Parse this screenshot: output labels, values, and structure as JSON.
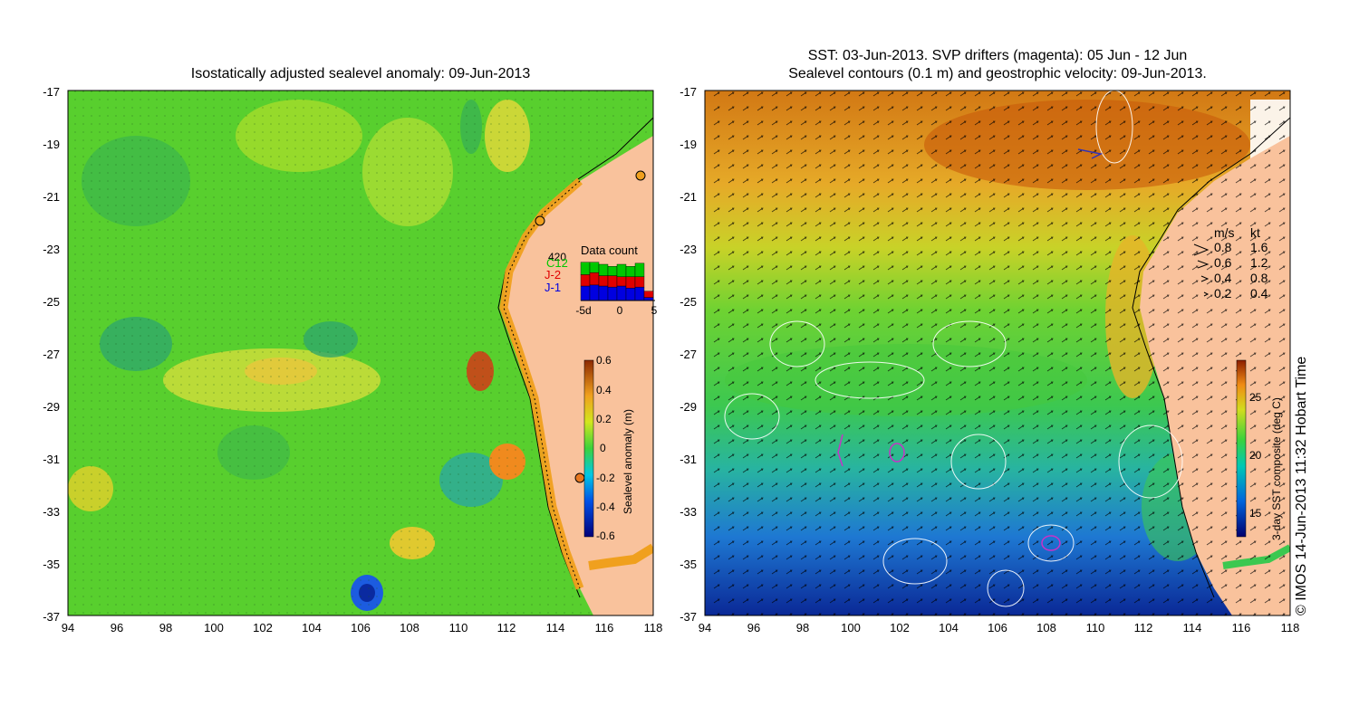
{
  "left_panel": {
    "title": "Isostatically adjusted sealevel anomaly: 09-Jun-2013",
    "x_ticks": [
      "94",
      "96",
      "98",
      "100",
      "102",
      "104",
      "106",
      "108",
      "110",
      "112",
      "114",
      "116",
      "118"
    ],
    "y_ticks": [
      "-17",
      "-19",
      "-21",
      "-23",
      "-25",
      "-27",
      "-29",
      "-31",
      "-33",
      "-35",
      "-37"
    ],
    "colorbar": {
      "label": "Sealevel anomaly (m)",
      "ticks": [
        "0.6",
        "0.4",
        "0.2",
        "0",
        "-0.2",
        "-0.4",
        "-0.6"
      ]
    },
    "data_count": {
      "title": "Data count",
      "max_label": "420",
      "satellites": [
        "C12",
        "J-2",
        "J-1"
      ],
      "satellite_colors": [
        "#00c800",
        "#e00000",
        "#0000e0"
      ],
      "x_ticks": [
        "-5d",
        "0",
        "5"
      ],
      "days": [
        {
          "c12": 120,
          "j2": 110,
          "j1": 140
        },
        {
          "c12": 100,
          "j2": 120,
          "j1": 150
        },
        {
          "c12": 110,
          "j2": 100,
          "j1": 140
        },
        {
          "c12": 90,
          "j2": 110,
          "j1": 130
        },
        {
          "c12": 120,
          "j2": 90,
          "j1": 140
        },
        {
          "c12": 100,
          "j2": 110,
          "j1": 120
        },
        {
          "c12": 130,
          "j2": 100,
          "j1": 130
        },
        {
          "c12": 0,
          "j2": 60,
          "j1": 30
        }
      ]
    }
  },
  "right_panel": {
    "title_line1": "SST: 03-Jun-2013. SVP drifters (magenta): 05 Jun - 12 Jun",
    "title_line2": "Sealevel contours (0.1 m) and geostrophic velocity: 09-Jun-2013.",
    "x_ticks": [
      "94",
      "96",
      "98",
      "100",
      "102",
      "104",
      "106",
      "108",
      "110",
      "112",
      "114",
      "116",
      "118"
    ],
    "y_ticks": [
      "-17",
      "-19",
      "-21",
      "-23",
      "-25",
      "-27",
      "-29",
      "-31",
      "-33",
      "-35",
      "-37"
    ],
    "colorbar": {
      "label": "3-day SST composite (deg C)",
      "ticks": [
        "25",
        "20",
        "15"
      ]
    },
    "velocity_legend": {
      "header_ms": "m/s",
      "header_kt": "kt",
      "rows": [
        {
          "ms": "0.8",
          "kt": "1.6"
        },
        {
          "ms": "0.6",
          "kt": "1.2"
        },
        {
          "ms": "0.4",
          "kt": "0.8"
        },
        {
          "ms": "0.2",
          "kt": "0.4"
        }
      ]
    }
  },
  "copyright": "© IMOS 14-Jun-2013 11:32 Hobart Time"
}
